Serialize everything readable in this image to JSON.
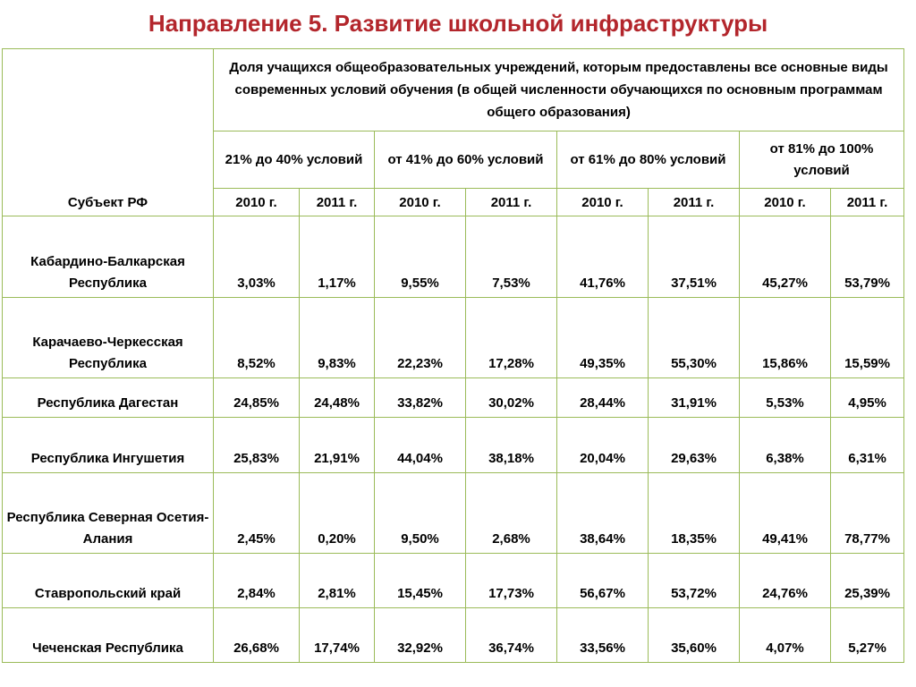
{
  "title": "Направление 5.  Развитие школьной инфраструктуры",
  "table": {
    "subject_header": "Субъект РФ",
    "description": "Доля учащихся общеобразовательных учреждений, которым предоставлены все основные виды современных условий обучения (в общей численности обучающихся по основным программам общего образования)",
    "ranges": [
      "21% до 40% условий",
      "от 41% до 60% условий",
      "от 61% до 80% условий",
      "от 81% до 100% условий"
    ],
    "years": [
      "2010 г.",
      "2011 г.",
      "2010 г.",
      "2011 г.",
      "2010 г.",
      "2011 г.",
      "2010 г.",
      "2011 г."
    ],
    "rows": [
      {
        "name": "Кабардино-Балкарская Республика",
        "values": [
          "3,03%",
          "1,17%",
          "9,55%",
          "7,53%",
          "41,76%",
          "37,51%",
          "45,27%",
          "53,79%"
        ]
      },
      {
        "name": "Карачаево-Черкесская Республика",
        "values": [
          "8,52%",
          "9,83%",
          "22,23%",
          "17,28%",
          "49,35%",
          "55,30%",
          "15,86%",
          "15,59%"
        ]
      },
      {
        "name": "Республика Дагестан",
        "values": [
          "24,85%",
          "24,48%",
          "33,82%",
          "30,02%",
          "28,44%",
          "31,91%",
          "5,53%",
          "4,95%"
        ]
      },
      {
        "name": "Республика Ингушетия",
        "values": [
          "25,83%",
          "21,91%",
          "44,04%",
          "38,18%",
          "20,04%",
          "29,63%",
          "6,38%",
          "6,31%"
        ]
      },
      {
        "name": "Республика Северная Осетия-Алания",
        "values": [
          "2,45%",
          "0,20%",
          "9,50%",
          "2,68%",
          "38,64%",
          "18,35%",
          "49,41%",
          "78,77%"
        ]
      },
      {
        "name": "Ставропольский край",
        "values": [
          "2,84%",
          "2,81%",
          "15,45%",
          "17,73%",
          "56,67%",
          "53,72%",
          "24,76%",
          "25,39%"
        ]
      },
      {
        "name": "Чеченская Республика",
        "values": [
          "26,68%",
          "17,74%",
          "32,92%",
          "36,74%",
          "33,56%",
          "35,60%",
          "4,07%",
          "5,27%"
        ]
      }
    ]
  },
  "colors": {
    "title": "#b3262c",
    "grid_lines": "#9bbb59"
  }
}
